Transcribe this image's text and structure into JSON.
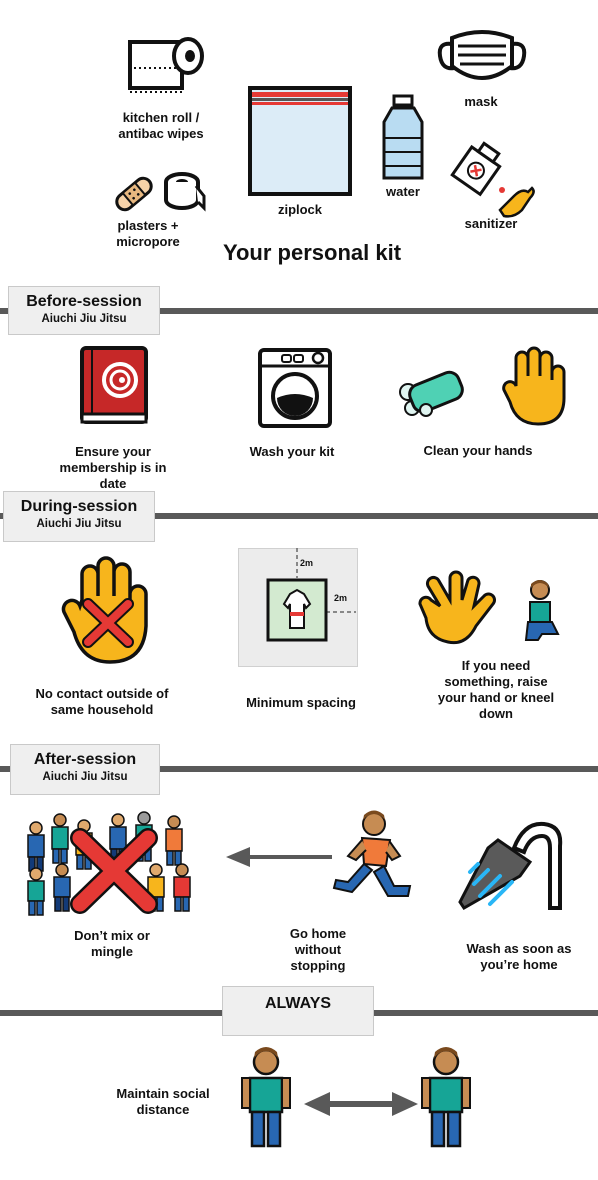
{
  "kit": {
    "title": "Your personal kit",
    "items": {
      "kitchen_roll": "kitchen roll /\nantibac wipes",
      "plasters": "plasters +\nmicropore",
      "ziplock": "ziplock",
      "water": "water",
      "mask": "mask",
      "sanitizer": "sanitizer"
    }
  },
  "before": {
    "heading": "Before-session",
    "sub": "Aiuchi Jiu Jitsu",
    "items": {
      "membership": "Ensure your\nmembership is in\ndate",
      "wash_kit": "Wash your kit",
      "clean_hands": "Clean your hands"
    }
  },
  "during": {
    "heading": "During-session",
    "sub": "Aiuchi Jiu Jitsu",
    "items": {
      "no_contact": "No contact outside of\nsame household",
      "spacing": "Minimum spacing",
      "raise_hand": "If you need\nsomething, raise\nyour hand or kneel\ndown"
    },
    "spacing_labels": {
      "vertical": "2m",
      "horizontal": "2m"
    }
  },
  "after": {
    "heading": "After-session",
    "sub": "Aiuchi Jiu Jitsu",
    "items": {
      "no_mix": "Don’t mix or\nmingle",
      "go_home": "Go home\nwithout\nstopping",
      "wash_home": "Wash as soon as\nyou’re home"
    }
  },
  "always": {
    "heading": "ALWAYS",
    "items": {
      "distance": "Maintain social\ndistance"
    }
  },
  "colors": {
    "rule": "#595959",
    "tag_bg": "#efefef",
    "hand": "#f7b51c",
    "red": "#e53935"
  }
}
